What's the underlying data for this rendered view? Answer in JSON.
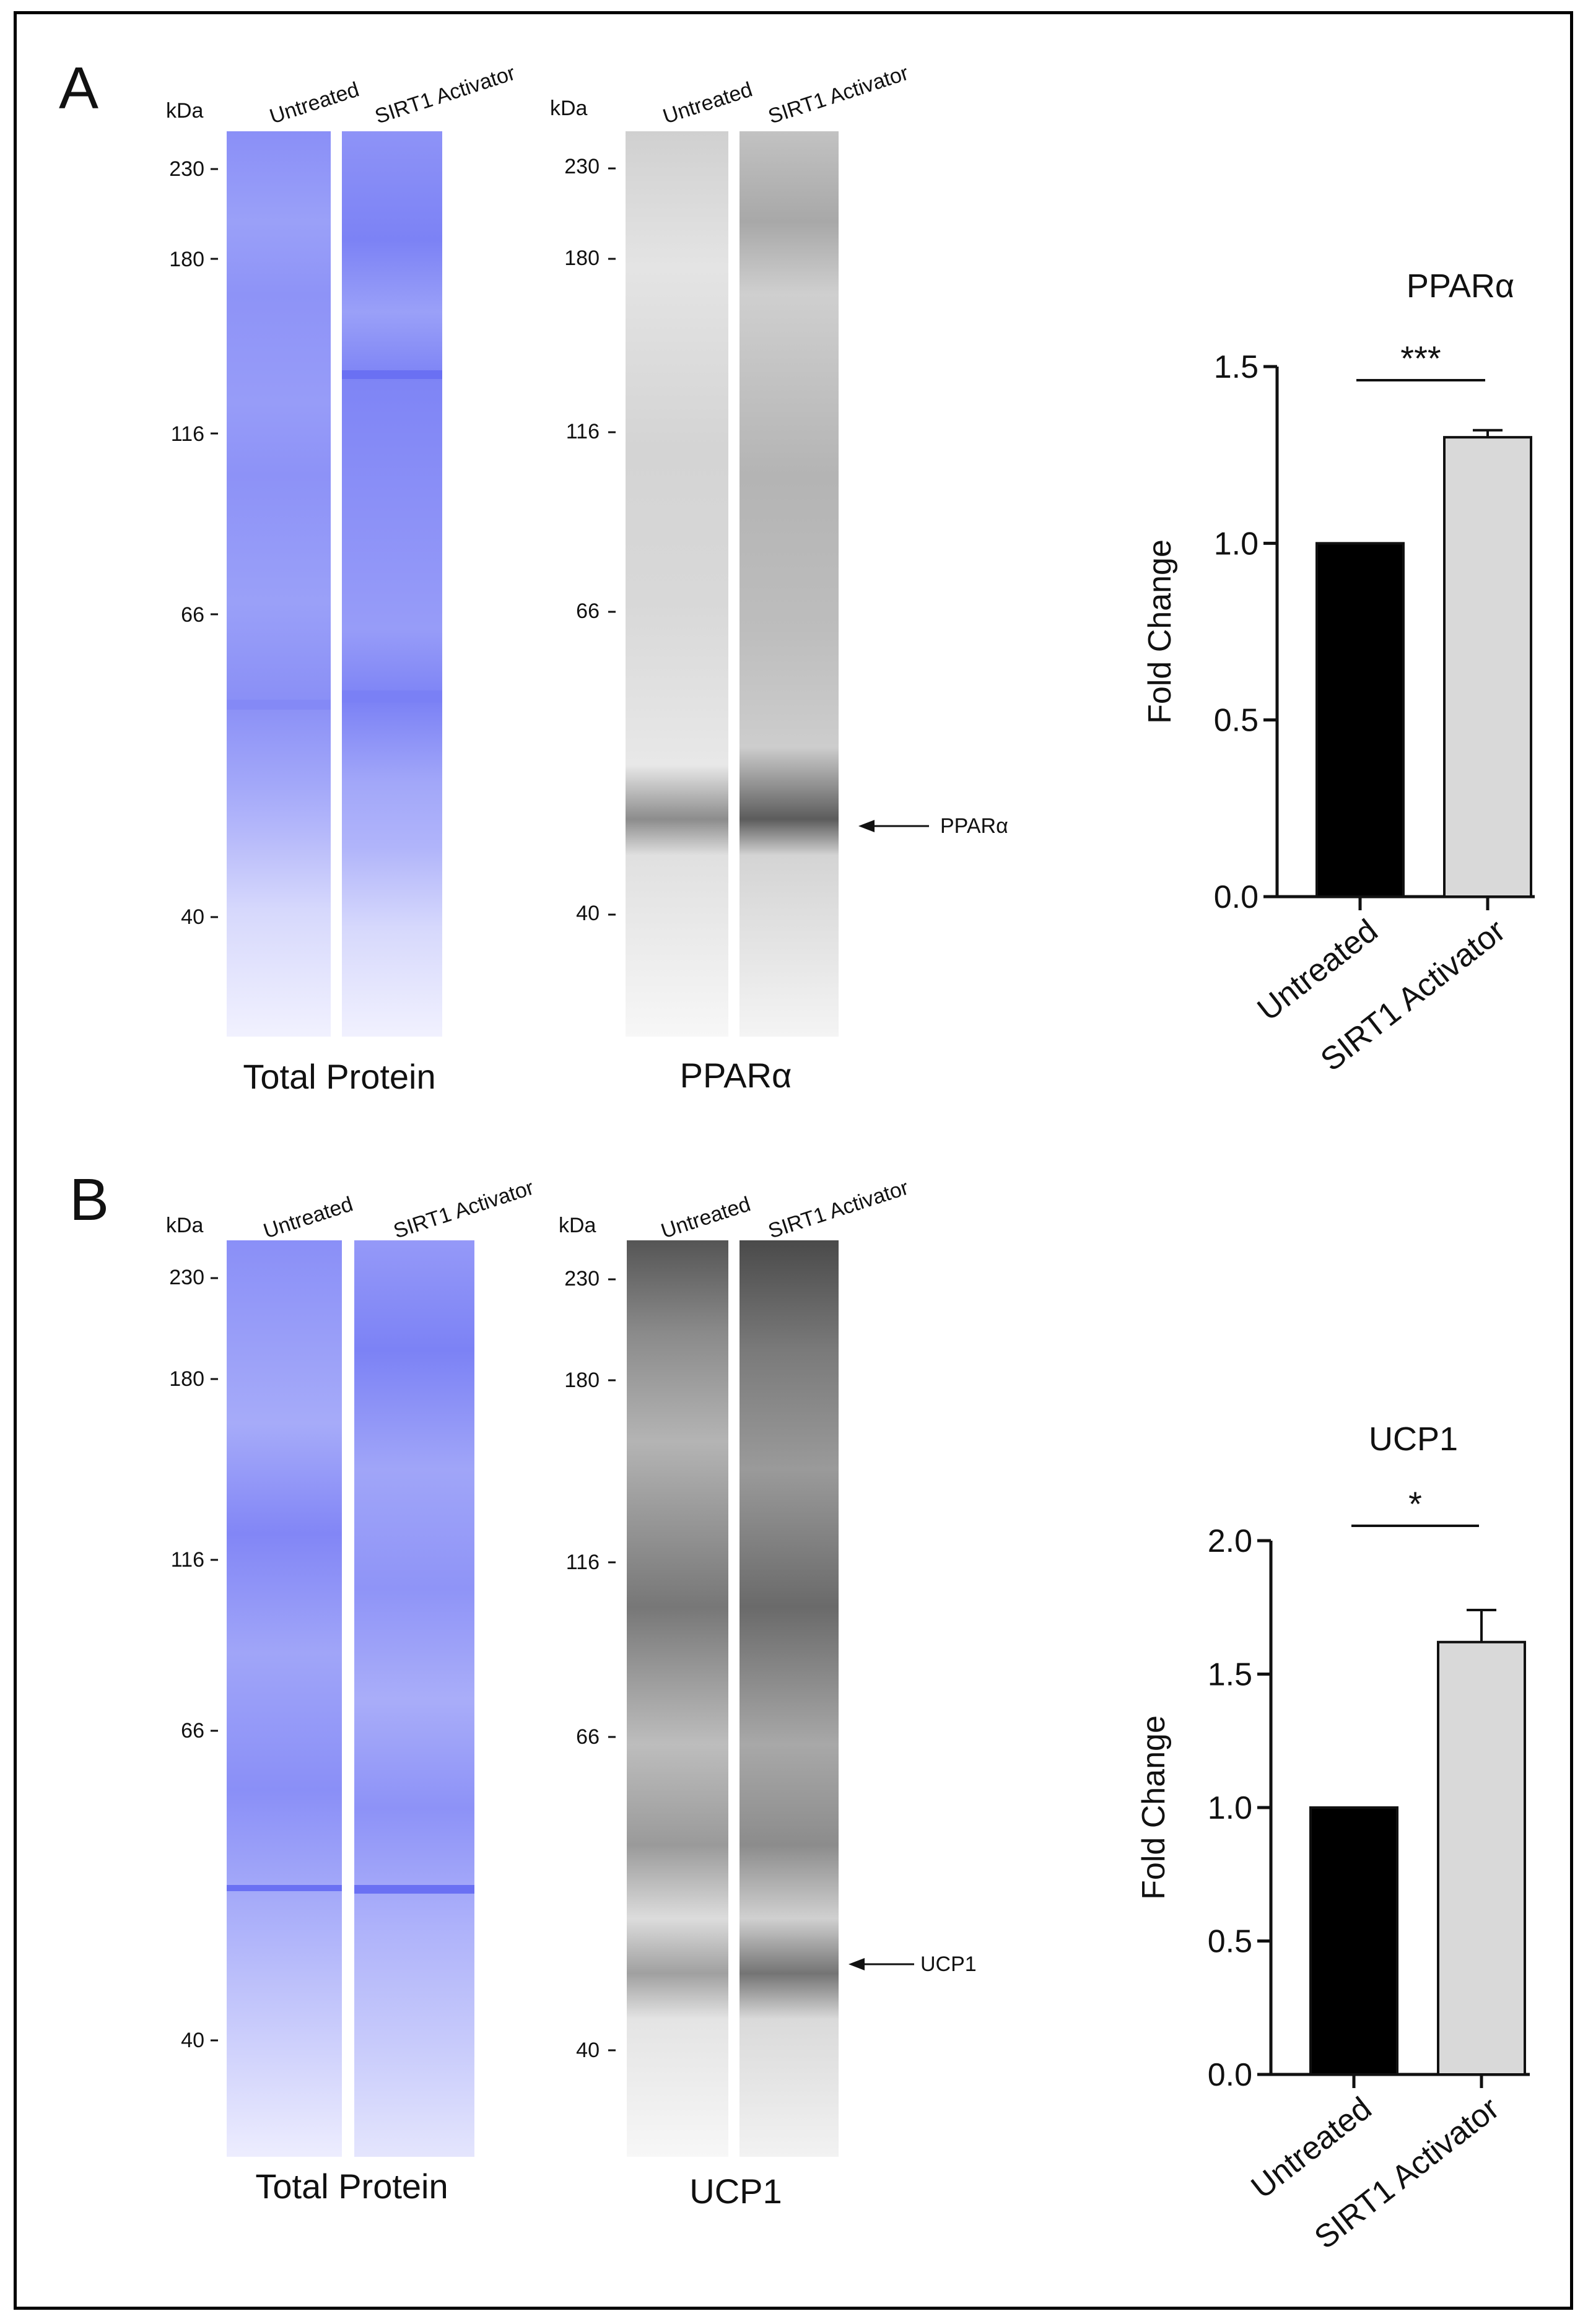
{
  "panels": [
    {
      "letter": "A",
      "kda_label": "kDa",
      "markers": [
        "230",
        "180",
        "116",
        "66",
        "40"
      ],
      "total_protein": {
        "lanes": [
          "Untreated",
          "SIRT1 Activator"
        ],
        "caption": "Total Protein"
      },
      "target_blot": {
        "lanes": [
          "Untreated",
          "SIRT1 Activator"
        ],
        "caption": "PPARα",
        "arrow_label": "PPARα"
      }
    },
    {
      "letter": "B",
      "kda_label": "kDa",
      "markers": [
        "230",
        "180",
        "116",
        "66",
        "40"
      ],
      "total_protein": {
        "lanes": [
          "Untreated",
          "SIRT1 Activator"
        ],
        "caption": "Total Protein"
      },
      "target_blot": {
        "lanes": [
          "Untreated",
          "SIRT1 Activator"
        ],
        "caption": "UCP1",
        "arrow_label": "UCP1"
      }
    }
  ],
  "colors": {
    "untreated_bar": "#000000",
    "activator_bar": "#d9d9d9",
    "total_protein_lane": "#8f93f7",
    "blot_lane_light": "#f2f2f2"
  },
  "chart_data": [
    {
      "type": "bar",
      "title": "PPARα",
      "categories": [
        "Untreated",
        "SIRT1 Activator"
      ],
      "values": [
        1.0,
        1.3
      ],
      "errors": [
        0,
        0.02
      ],
      "ylabel": "Fold Change",
      "xlabel": "",
      "ylim": [
        0,
        1.5
      ],
      "yticks": [
        "0.0",
        "0.5",
        "1.0",
        "1.5"
      ],
      "significance": "***"
    },
    {
      "type": "bar",
      "title": "UCP1",
      "categories": [
        "Untreated",
        "SIRT1 Activator"
      ],
      "values": [
        1.0,
        1.62
      ],
      "errors": [
        0,
        0.12
      ],
      "ylabel": "Fold Change",
      "xlabel": "",
      "ylim": [
        0,
        2.0
      ],
      "yticks": [
        "0.0",
        "0.5",
        "1.0",
        "1.5",
        "2.0"
      ],
      "significance": "*"
    }
  ]
}
